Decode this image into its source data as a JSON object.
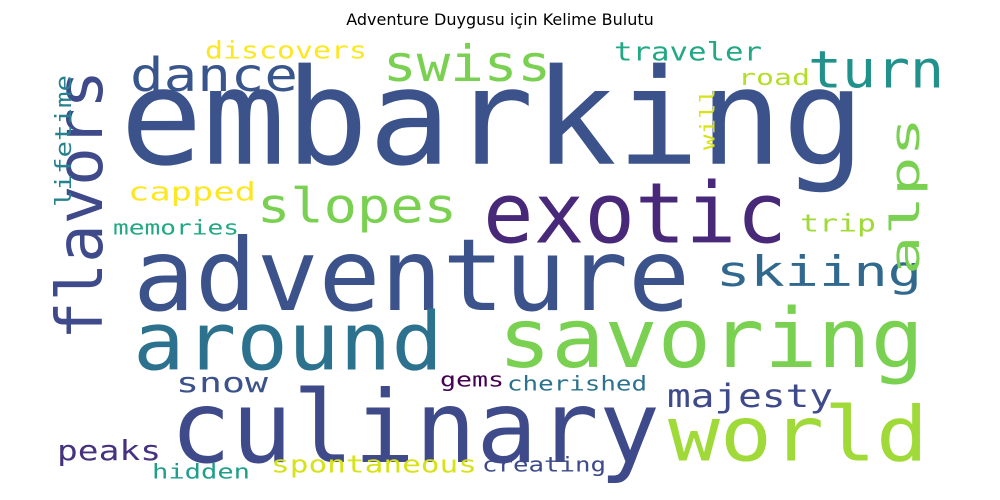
{
  "chart_data": {
    "type": "wordcloud",
    "title": "Adventure Duygusu için Kelime Bulutu",
    "words": [
      {
        "text": "embarking",
        "color": "#3b528b",
        "vertical": false
      },
      {
        "text": "exotic",
        "color": "#482878",
        "vertical": false
      },
      {
        "text": "adventure",
        "color": "#3b528b",
        "vertical": false
      },
      {
        "text": "flavors",
        "color": "#3e4a89",
        "vertical": true
      },
      {
        "text": "culinary",
        "color": "#3e4a89",
        "vertical": false
      },
      {
        "text": "savoring",
        "color": "#7ad151",
        "vertical": false
      },
      {
        "text": "world",
        "color": "#a0da39",
        "vertical": false
      },
      {
        "text": "around",
        "color": "#2c728e",
        "vertical": false
      },
      {
        "text": "turn",
        "color": "#21918c",
        "vertical": false
      },
      {
        "text": "swiss",
        "color": "#7ad151",
        "vertical": false
      },
      {
        "text": "dance",
        "color": "#39568c",
        "vertical": false
      },
      {
        "text": "slopes",
        "color": "#7ad151",
        "vertical": false
      },
      {
        "text": "skiing",
        "color": "#31688e",
        "vertical": false
      },
      {
        "text": "alps",
        "color": "#7ad151",
        "vertical": true
      },
      {
        "text": "majesty",
        "color": "#3e4a89",
        "vertical": false
      },
      {
        "text": "snow",
        "color": "#3b528b",
        "vertical": false
      },
      {
        "text": "capped",
        "color": "#fde725",
        "vertical": false
      },
      {
        "text": "peaks",
        "color": "#46327e",
        "vertical": false
      },
      {
        "text": "discovers",
        "color": "#fde725",
        "vertical": false
      },
      {
        "text": "traveler",
        "color": "#22a884",
        "vertical": false
      },
      {
        "text": "road",
        "color": "#b5de2b",
        "vertical": false
      },
      {
        "text": "trip",
        "color": "#a0da39",
        "vertical": false
      },
      {
        "text": "lifetime",
        "color": "#26828e",
        "vertical": true
      },
      {
        "text": "memories",
        "color": "#22a884",
        "vertical": false
      },
      {
        "text": "will",
        "color": "#d8e219",
        "vertical": true
      },
      {
        "text": "gems",
        "color": "#440154",
        "vertical": false
      },
      {
        "text": "cherished",
        "color": "#2c728e",
        "vertical": false
      },
      {
        "text": "hidden",
        "color": "#1f9e89",
        "vertical": false
      },
      {
        "text": "spontaneous",
        "color": "#d8e219",
        "vertical": false
      },
      {
        "text": "creating",
        "color": "#3e4a89",
        "vertical": false
      }
    ]
  }
}
